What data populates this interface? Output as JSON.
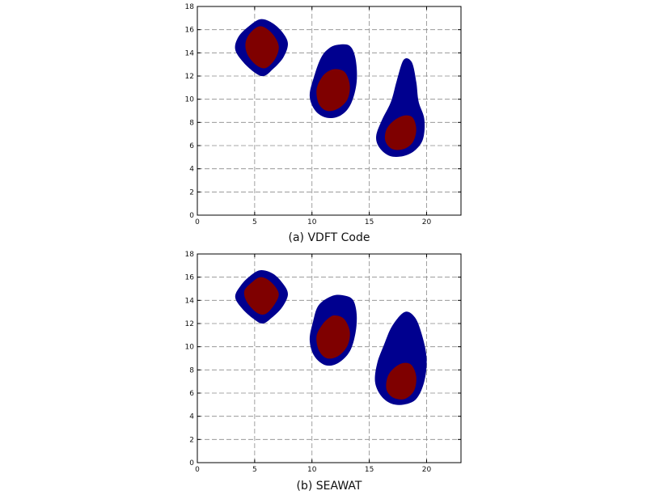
{
  "chart_data": [
    {
      "type": "area",
      "caption": "(a) VDFT Code",
      "xlim": [
        0,
        23
      ],
      "ylim": [
        0,
        18
      ],
      "xticks": [
        0,
        5,
        10,
        15,
        20
      ],
      "yticks": [
        0,
        2,
        4,
        6,
        8,
        10,
        12,
        14,
        16,
        18
      ],
      "grid": true,
      "colors": {
        "outer": "#00008f",
        "inner": "#7f0000"
      },
      "shapes": [
        {
          "outer": [
            [
              5.5,
              16.9
            ],
            [
              6.5,
              16.6
            ],
            [
              7.4,
              15.8
            ],
            [
              7.9,
              14.8
            ],
            [
              7.5,
              13.6
            ],
            [
              6.6,
              12.6
            ],
            [
              5.8,
              12.0
            ],
            [
              5.0,
              12.3
            ],
            [
              4.0,
              13.2
            ],
            [
              3.3,
              14.3
            ],
            [
              3.6,
              15.4
            ],
            [
              4.5,
              16.3
            ]
          ],
          "inner": [
            [
              5.5,
              16.3
            ],
            [
              6.5,
              15.7
            ],
            [
              7.1,
              14.6
            ],
            [
              6.8,
              13.5
            ],
            [
              6.0,
              12.7
            ],
            [
              5.2,
              12.9
            ],
            [
              4.4,
              13.8
            ],
            [
              4.2,
              14.8
            ],
            [
              4.6,
              15.7
            ]
          ]
        },
        {
          "outer": [
            [
              12.3,
              14.7
            ],
            [
              13.3,
              14.6
            ],
            [
              13.8,
              13.5
            ],
            [
              13.9,
              11.5
            ],
            [
              13.4,
              9.6
            ],
            [
              12.5,
              8.6
            ],
            [
              11.3,
              8.4
            ],
            [
              10.3,
              9.0
            ],
            [
              9.8,
              10.3
            ],
            [
              10.2,
              12.0
            ],
            [
              10.8,
              13.6
            ],
            [
              11.5,
              14.4
            ]
          ],
          "inner": [
            [
              12.1,
              12.6
            ],
            [
              12.9,
              12.3
            ],
            [
              13.3,
              11.2
            ],
            [
              13.1,
              10.0
            ],
            [
              12.3,
              9.2
            ],
            [
              11.3,
              9.0
            ],
            [
              10.6,
              9.6
            ],
            [
              10.4,
              10.8
            ],
            [
              10.8,
              11.8
            ],
            [
              11.4,
              12.4
            ]
          ]
        },
        {
          "outer": [
            [
              18.0,
              13.4
            ],
            [
              18.7,
              13.2
            ],
            [
              19.1,
              11.5
            ],
            [
              19.3,
              9.8
            ],
            [
              19.8,
              8.3
            ],
            [
              19.7,
              6.6
            ],
            [
              19.0,
              5.6
            ],
            [
              18.0,
              5.1
            ],
            [
              16.8,
              5.1
            ],
            [
              15.9,
              5.8
            ],
            [
              15.6,
              6.8
            ],
            [
              16.1,
              8.2
            ],
            [
              16.9,
              9.8
            ],
            [
              17.4,
              11.6
            ]
          ],
          "inner": [
            [
              18.1,
              8.6
            ],
            [
              18.8,
              8.4
            ],
            [
              19.1,
              7.4
            ],
            [
              18.8,
              6.3
            ],
            [
              18.0,
              5.7
            ],
            [
              17.0,
              5.7
            ],
            [
              16.4,
              6.4
            ],
            [
              16.5,
              7.4
            ],
            [
              17.2,
              8.2
            ]
          ]
        }
      ]
    },
    {
      "type": "area",
      "caption": "(b) SEAWAT",
      "xlim": [
        0,
        23
      ],
      "ylim": [
        0,
        18
      ],
      "xticks": [
        0,
        5,
        10,
        15,
        20
      ],
      "yticks": [
        0,
        2,
        4,
        6,
        8,
        10,
        12,
        14,
        16,
        18
      ],
      "grid": true,
      "colors": {
        "outer": "#00008f",
        "inner": "#7f0000"
      },
      "shapes": [
        {
          "outer": [
            [
              5.5,
              16.6
            ],
            [
              6.6,
              16.3
            ],
            [
              7.5,
              15.4
            ],
            [
              7.9,
              14.5
            ],
            [
              7.4,
              13.4
            ],
            [
              6.5,
              12.5
            ],
            [
              5.7,
              12.0
            ],
            [
              4.9,
              12.4
            ],
            [
              3.9,
              13.3
            ],
            [
              3.3,
              14.3
            ],
            [
              3.8,
              15.3
            ],
            [
              4.6,
              16.1
            ]
          ],
          "inner": [
            [
              5.5,
              16.0
            ],
            [
              6.4,
              15.6
            ],
            [
              7.1,
              14.6
            ],
            [
              6.7,
              13.6
            ],
            [
              5.9,
              12.8
            ],
            [
              5.1,
              13.0
            ],
            [
              4.3,
              13.9
            ],
            [
              4.1,
              14.8
            ],
            [
              4.7,
              15.5
            ]
          ]
        },
        {
          "outer": [
            [
              11.8,
              14.4
            ],
            [
              12.9,
              14.4
            ],
            [
              13.6,
              14.0
            ],
            [
              13.9,
              12.8
            ],
            [
              13.8,
              11.2
            ],
            [
              13.3,
              9.6
            ],
            [
              12.3,
              8.6
            ],
            [
              11.2,
              8.4
            ],
            [
              10.2,
              9.2
            ],
            [
              9.8,
              10.6
            ],
            [
              10.1,
              12.2
            ],
            [
              10.6,
              13.6
            ]
          ],
          "inner": [
            [
              12.0,
              12.7
            ],
            [
              12.8,
              12.4
            ],
            [
              13.3,
              11.3
            ],
            [
              13.1,
              10.1
            ],
            [
              12.3,
              9.2
            ],
            [
              11.3,
              9.0
            ],
            [
              10.6,
              9.7
            ],
            [
              10.4,
              10.9
            ],
            [
              10.9,
              11.9
            ],
            [
              11.5,
              12.5
            ]
          ]
        },
        {
          "outer": [
            [
              18.1,
              13.0
            ],
            [
              19.0,
              12.5
            ],
            [
              19.6,
              11.0
            ],
            [
              20.0,
              9.0
            ],
            [
              19.8,
              7.0
            ],
            [
              19.1,
              5.5
            ],
            [
              18.0,
              5.0
            ],
            [
              16.9,
              5.1
            ],
            [
              16.0,
              5.8
            ],
            [
              15.5,
              7.0
            ],
            [
              15.7,
              8.6
            ],
            [
              16.3,
              10.2
            ],
            [
              17.0,
              11.8
            ]
          ],
          "inner": [
            [
              18.0,
              8.6
            ],
            [
              18.7,
              8.4
            ],
            [
              19.1,
              7.4
            ],
            [
              18.9,
              6.2
            ],
            [
              18.1,
              5.5
            ],
            [
              17.1,
              5.6
            ],
            [
              16.5,
              6.3
            ],
            [
              16.6,
              7.4
            ],
            [
              17.2,
              8.2
            ]
          ]
        }
      ]
    }
  ]
}
